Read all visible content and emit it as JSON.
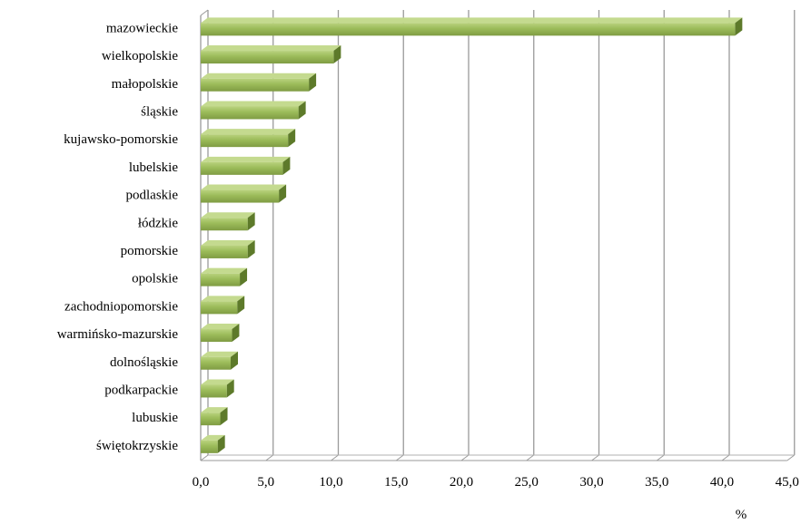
{
  "chart_data": {
    "type": "bar",
    "orientation": "horizontal",
    "style": "3d",
    "bar_color": "#9bbb59",
    "categories": [
      "mazowieckie",
      "wielkopolskie",
      "małopolskie",
      "śląskie",
      "kujawsko-pomorskie",
      "lubelskie",
      "podlaskie",
      "łódzkie",
      "pomorskie",
      "opolskie",
      "zachodniopomorskie",
      "warmińsko-mazurskie",
      "dolnośląskie",
      "podkarpackie",
      "lubuskie",
      "świętokrzyskie"
    ],
    "values": [
      41.0,
      10.2,
      8.3,
      7.5,
      6.7,
      6.3,
      6.0,
      3.6,
      3.6,
      3.0,
      2.8,
      2.4,
      2.3,
      2.0,
      1.5,
      1.3
    ],
    "x_ticks": [
      "0,0",
      "5,0",
      "10,0",
      "15,0",
      "20,0",
      "25,0",
      "30,0",
      "35,0",
      "40,0",
      "45,0"
    ],
    "xlim": [
      0,
      45
    ],
    "xlabel": "%",
    "grid": true
  }
}
